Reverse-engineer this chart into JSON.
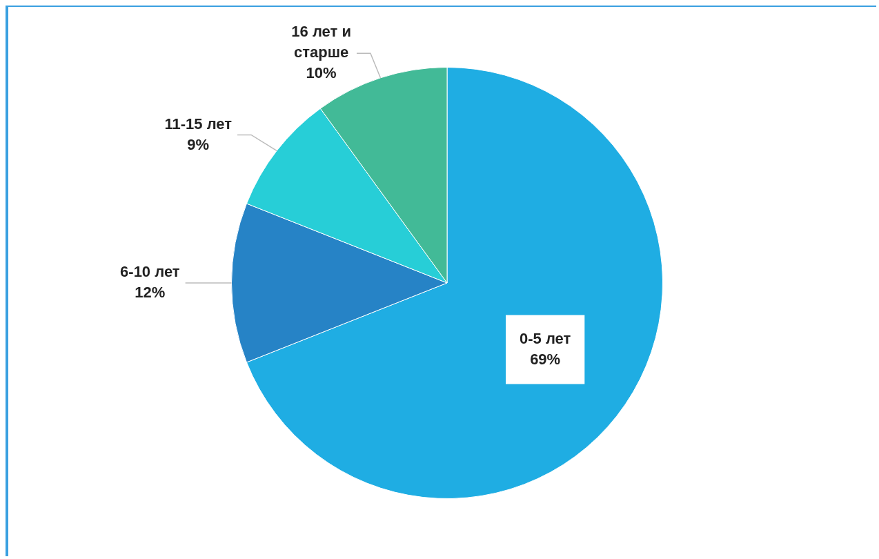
{
  "chart_data": {
    "type": "pie",
    "categories": [
      "0-5 лет",
      "6-10 лет",
      "11-15 лет",
      "16 лет и старше"
    ],
    "values": [
      69,
      12,
      9,
      10
    ],
    "colors": [
      "#1fade3",
      "#2683c6",
      "#27ced7",
      "#42ba97"
    ],
    "value_labels": [
      "69%",
      "12%",
      "9%",
      "10%"
    ],
    "legend": false
  }
}
